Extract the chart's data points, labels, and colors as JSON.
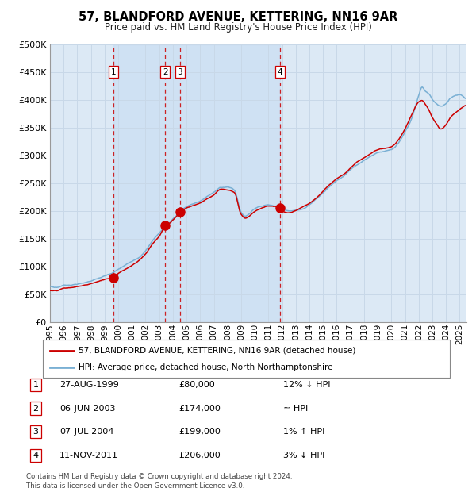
{
  "title": "57, BLANDFORD AVENUE, KETTERING, NN16 9AR",
  "subtitle": "Price paid vs. HM Land Registry's House Price Index (HPI)",
  "ylim": [
    0,
    500000
  ],
  "yticks": [
    0,
    50000,
    100000,
    150000,
    200000,
    250000,
    300000,
    350000,
    400000,
    450000,
    500000
  ],
  "background_color": "#ffffff",
  "chart_bg_color": "#dce9f5",
  "sale_color": "#cc0000",
  "hpi_color": "#7ab0d4",
  "grid_color": "#c8d8e8",
  "dashed_line_color": "#cc0000",
  "sale_dates_dec": {
    "1": 1999.655,
    "2": 2003.428,
    "3": 2004.516,
    "4": 2011.861
  },
  "sale_prices": {
    "1": 80000,
    "2": 174000,
    "3": 199000,
    "4": 206000
  },
  "table_entries": [
    {
      "num": "1",
      "date": "27-AUG-1999",
      "price": "£80,000",
      "hpi_text": "12% ↓ HPI"
    },
    {
      "num": "2",
      "date": "06-JUN-2003",
      "price": "£174,000",
      "hpi_text": "≈ HPI"
    },
    {
      "num": "3",
      "date": "07-JUL-2004",
      "price": "£199,000",
      "hpi_text": "1% ↑ HPI"
    },
    {
      "num": "4",
      "date": "11-NOV-2011",
      "price": "£206,000",
      "hpi_text": "3% ↓ HPI"
    }
  ],
  "legend_sale_label": "57, BLANDFORD AVENUE, KETTERING, NN16 9AR (detached house)",
  "legend_hpi_label": "HPI: Average price, detached house, North Northamptonshire",
  "footer_text": "Contains HM Land Registry data © Crown copyright and database right 2024.\nThis data is licensed under the Open Government Licence v3.0.",
  "xstart": 1995.0,
  "xend": 2025.5
}
